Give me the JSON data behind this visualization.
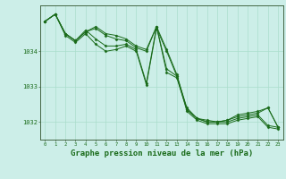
{
  "background_color": "#cceee8",
  "plot_bg_color": "#cceee8",
  "grid_color": "#aaddcc",
  "line_color": "#1a6b1a",
  "marker_color": "#1a6b1a",
  "xlabel": "Graphe pression niveau de la mer (hPa)",
  "xlabel_fontsize": 6.5,
  "xlim": [
    -0.5,
    23.5
  ],
  "ylim": [
    1031.5,
    1035.3
  ],
  "yticks": [
    1032,
    1033,
    1034
  ],
  "xticks": [
    0,
    1,
    2,
    3,
    4,
    5,
    6,
    7,
    8,
    9,
    10,
    11,
    12,
    13,
    14,
    15,
    16,
    17,
    18,
    19,
    20,
    21,
    22,
    23
  ],
  "series": [
    [
      1034.85,
      1035.05,
      1034.5,
      1034.3,
      1034.6,
      1034.35,
      1034.15,
      1034.15,
      1034.2,
      1034.05,
      1033.1,
      1034.7,
      1034.05,
      1033.35,
      1032.35,
      1032.1,
      1032.0,
      1032.0,
      1032.0,
      1032.1,
      1032.15,
      1032.2,
      1031.9,
      1031.85
    ],
    [
      1034.85,
      1035.05,
      1034.5,
      1034.3,
      1034.55,
      1034.65,
      1034.45,
      1034.35,
      1034.3,
      1034.1,
      1034.0,
      1034.7,
      1033.4,
      1033.25,
      1032.35,
      1032.1,
      1032.0,
      1032.0,
      1032.05,
      1032.15,
      1032.2,
      1032.25,
      1032.4,
      1031.85
    ],
    [
      1034.85,
      1035.05,
      1034.5,
      1034.3,
      1034.55,
      1034.7,
      1034.5,
      1034.45,
      1034.35,
      1034.15,
      1034.05,
      1034.7,
      1033.5,
      1033.3,
      1032.4,
      1032.1,
      1032.05,
      1032.0,
      1032.05,
      1032.2,
      1032.25,
      1032.3,
      1032.4,
      1031.85
    ],
    [
      1034.85,
      1035.05,
      1034.45,
      1034.25,
      1034.5,
      1034.2,
      1034.0,
      1034.05,
      1034.15,
      1034.0,
      1033.05,
      1034.65,
      1034.0,
      1033.3,
      1032.3,
      1032.05,
      1031.95,
      1031.95,
      1031.95,
      1032.05,
      1032.1,
      1032.15,
      1031.85,
      1031.8
    ]
  ]
}
